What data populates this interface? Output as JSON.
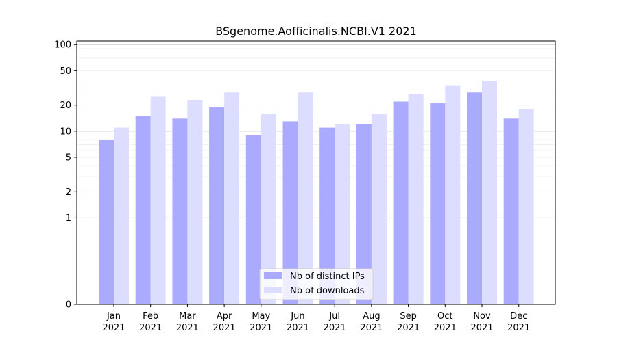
{
  "chart_data": {
    "type": "bar",
    "title": "BSgenome.Aofficinalis.NCBI.V1 2021",
    "xlabel": "",
    "ylabel": "",
    "yscale": "symlog",
    "ylim": [
      0,
      110
    ],
    "yticks": [
      0,
      1,
      2,
      5,
      10,
      20,
      50,
      100
    ],
    "ytick_labels": [
      "0",
      "1",
      "2",
      "5",
      "10",
      "20",
      "50",
      "100"
    ],
    "categories": [
      "Jan",
      "Feb",
      "Mar",
      "Apr",
      "May",
      "Jun",
      "Jul",
      "Aug",
      "Sep",
      "Oct",
      "Nov",
      "Dec"
    ],
    "category_sublabels": [
      "2021",
      "2021",
      "2021",
      "2021",
      "2021",
      "2021",
      "2021",
      "2021",
      "2021",
      "2021",
      "2021",
      "2021"
    ],
    "series": [
      {
        "name": "Nb of distinct IPs",
        "color": "#aaaaff",
        "values": [
          8,
          15,
          14,
          19,
          9,
          13,
          11,
          12,
          22,
          21,
          28,
          14
        ]
      },
      {
        "name": "Nb of downloads",
        "color": "#ddddff",
        "values": [
          11,
          25,
          23,
          28,
          16,
          28,
          12,
          16,
          27,
          34,
          38,
          18
        ]
      }
    ],
    "grid": true,
    "legend_position": "bottom-center"
  }
}
